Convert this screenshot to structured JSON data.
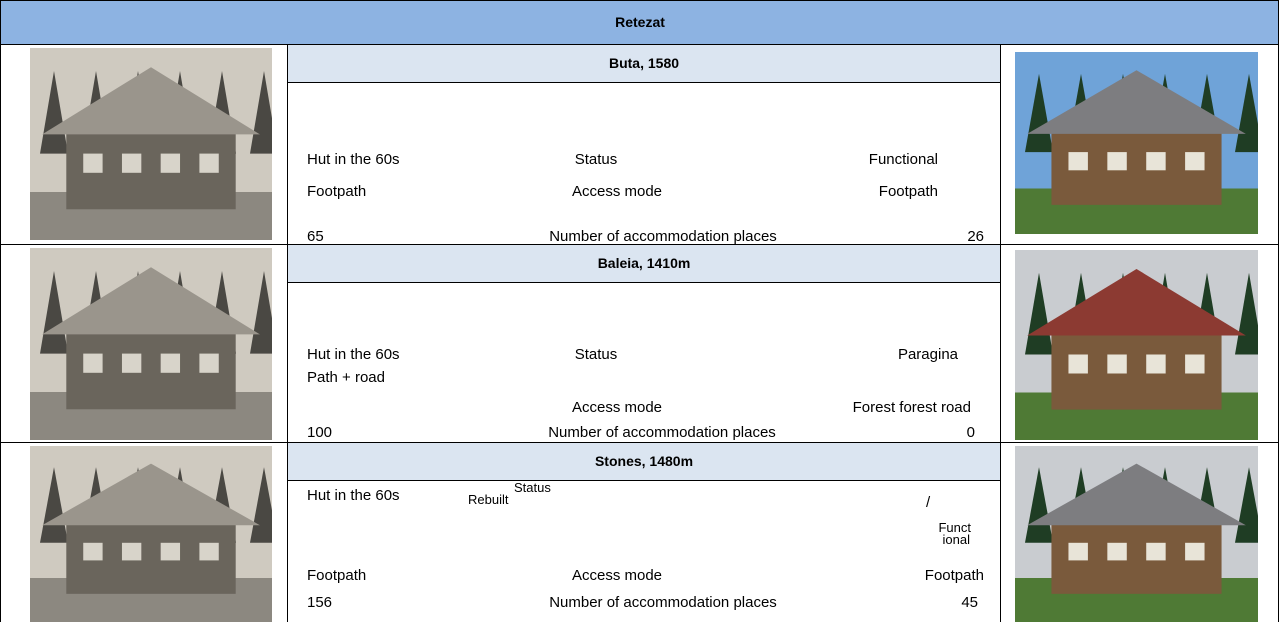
{
  "header": {
    "title": "Retezat"
  },
  "huts": [
    {
      "title": "Buta, 1580",
      "texts": [
        "Hut in the 60s",
        "Status",
        "Functional",
        "Footpath",
        "Access mode",
        "Footpath",
        "65",
        "Number of accommodation places",
        "26"
      ]
    },
    {
      "title": "Baleia, 1410m",
      "texts": [
        "Hut in the 60s",
        "Status",
        "Paragina",
        "Path + road",
        "Access mode",
        "Forest forest road",
        "100",
        "Number of accommodation places",
        "0"
      ]
    },
    {
      "title": "Stones, 1480m",
      "texts": [
        "Hut in the 60s",
        "Rebuilt",
        "Status",
        "/",
        "Funct",
        "ional",
        "Footpath",
        "Access mode",
        "Footpath",
        "156",
        "Number of accommodation places",
        "45"
      ]
    }
  ]
}
